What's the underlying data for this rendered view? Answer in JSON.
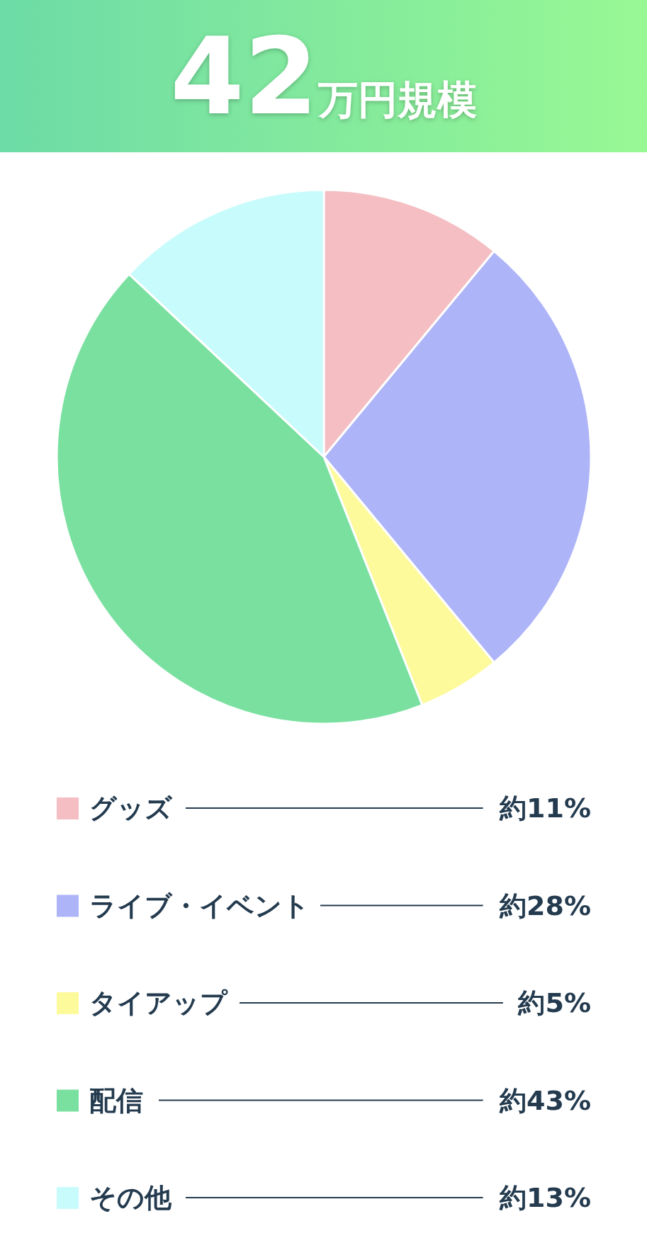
{
  "chart_data": {
    "type": "pie",
    "title": "42万円規模",
    "categories": [
      "グッズ",
      "ライブ・イベント",
      "タイアップ",
      "配信",
      "その他"
    ],
    "values": [
      11,
      28,
      5,
      43,
      13
    ],
    "value_labels": [
      "約11%",
      "約28%",
      "約5%",
      "約43%",
      "約13%"
    ],
    "colors": [
      "#f4bec3",
      "#aeb4f8",
      "#fdfa9c",
      "#7ae0a0",
      "#c8fbfc"
    ],
    "legend": "bottom"
  }
}
